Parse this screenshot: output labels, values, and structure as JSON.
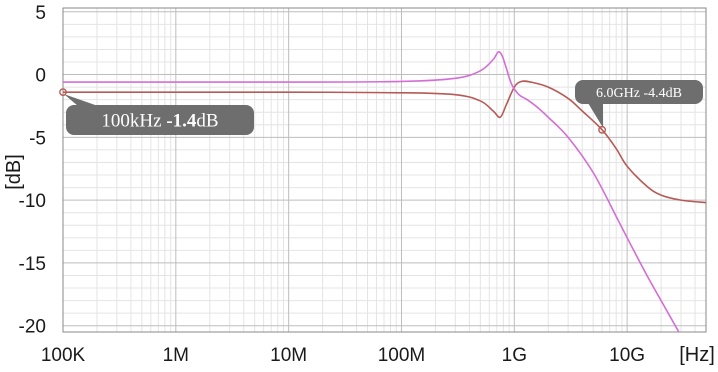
{
  "chart_data": {
    "type": "line",
    "title": "",
    "xlabel": "[Hz]",
    "ylabel": "[dB]",
    "xscale": "log",
    "xlim": [
      100000,
      50000000000
    ],
    "ylim": [
      -20.5,
      5.3
    ],
    "x_ticks": [
      {
        "value": 100000,
        "label": "100K"
      },
      {
        "value": 1000000,
        "label": "1M"
      },
      {
        "value": 10000000,
        "label": "10M"
      },
      {
        "value": 100000000,
        "label": "100M"
      },
      {
        "value": 1000000000,
        "label": "1G"
      },
      {
        "value": 10000000000,
        "label": "10G"
      }
    ],
    "y_ticks": [
      {
        "value": 5,
        "label": "5"
      },
      {
        "value": 0,
        "label": "0"
      },
      {
        "value": -5,
        "label": "-5"
      },
      {
        "value": -10,
        "label": "-10"
      },
      {
        "value": -15,
        "label": "-15"
      },
      {
        "value": -20,
        "label": "-20"
      }
    ],
    "grid": true,
    "series": [
      {
        "color": "#b65a55",
        "x": [
          100000,
          1000000,
          10000000,
          100000000,
          300000000,
          500000000,
          650000000,
          750000000,
          850000000,
          1000000000,
          1150000000,
          1400000000,
          2000000000,
          3000000000,
          4000000000,
          6000000000,
          8000000000,
          10000000000,
          15000000000,
          20000000000,
          30000000000,
          50000000000
        ],
        "y": [
          -1.4,
          -1.4,
          -1.4,
          -1.45,
          -1.6,
          -2.1,
          -2.9,
          -3.4,
          -2.4,
          -1.0,
          -0.55,
          -0.6,
          -1.0,
          -1.9,
          -2.9,
          -4.4,
          -5.9,
          -7.3,
          -8.9,
          -9.6,
          -10.0,
          -10.2
        ]
      },
      {
        "color": "#d46ed6",
        "x": [
          100000,
          1000000,
          10000000,
          100000000,
          300000000,
          500000000,
          650000000,
          720000000,
          780000000,
          850000000,
          950000000,
          1100000000,
          1300000000,
          1600000000,
          2000000000,
          3000000000,
          5000000000,
          8000000000,
          10000000000,
          15000000000,
          20000000000,
          30000000000
        ],
        "y": [
          -0.6,
          -0.6,
          -0.6,
          -0.55,
          -0.3,
          0.3,
          1.2,
          1.8,
          1.5,
          0.5,
          -0.8,
          -1.6,
          -2.0,
          -2.6,
          -3.4,
          -5.0,
          -7.8,
          -11.3,
          -13.0,
          -16.0,
          -18.0,
          -20.8
        ]
      }
    ],
    "markers": [
      {
        "series": 0,
        "x": 100000,
        "y": -1.4,
        "label_normal": "100kHz ",
        "label_bold": "-1.4",
        "label_suffix": "dB"
      },
      {
        "series": 0,
        "x": 6000000000,
        "y": -4.4,
        "label_normal": "6.0GHz -4.4dB",
        "label_bold": "",
        "label_suffix": ""
      }
    ]
  }
}
